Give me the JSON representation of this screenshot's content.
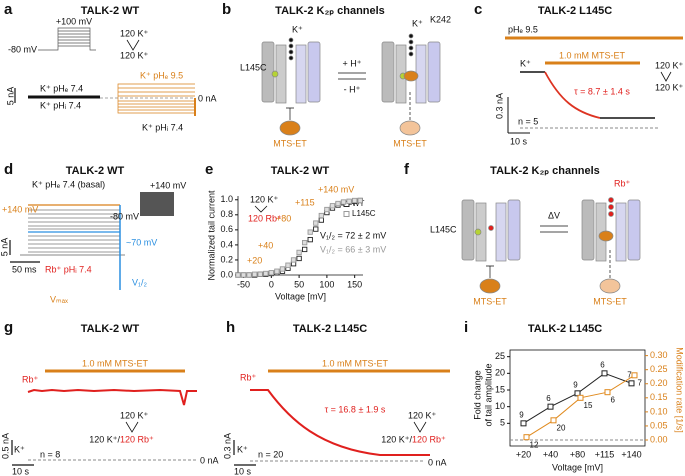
{
  "a": {
    "letter": "a",
    "title": "TALK-2 WT",
    "labels": [
      "+100 mV",
      "-80 mV",
      "120 K⁺",
      "120 K⁺",
      "K⁺ pHₑ 9.5",
      "K⁺ pHₑ 7.4",
      "5 nA",
      "K⁺ pHᵢ 7.4",
      "0 nA",
      "K⁺ pHᵢ 7.4"
    ]
  },
  "b": {
    "letter": "b",
    "title": "TALK-2 K₂ₚ channels",
    "labels": [
      "K⁺",
      "K⁺",
      "K242",
      "L145C",
      "+ H⁺",
      "- H⁺",
      "MTS-ET",
      "MTS-ET"
    ]
  },
  "c": {
    "letter": "c",
    "title": "TALK-2 L145C",
    "labels": [
      "pHₑ 9.5",
      "1.0 mM MTS-ET",
      "K⁺",
      "120 K⁺",
      "120 K⁺",
      "τ = 8.7 ± 1.4 s",
      "0.3 nA",
      "n = 5",
      "10 s"
    ]
  },
  "d": {
    "letter": "d",
    "title": "TALK-2 WT",
    "labels": [
      "K⁺ pHₑ 7.4 (basal)",
      "+140 mV",
      "+140 mV",
      "-80 mV",
      "5 nA",
      "~70 mV",
      "50 ms",
      "Rb⁺ pHᵢ 7.4",
      "V₁/₂",
      "Vₘₐₓ"
    ]
  },
  "e": {
    "letter": "e",
    "chart_data": {
      "type": "scatter",
      "title": "TALK-2 WT",
      "xlabel": "Voltage [mV]",
      "ylabel": "Normalized tail current",
      "x": [
        -60,
        -50,
        -40,
        -30,
        -20,
        -10,
        0,
        10,
        20,
        30,
        40,
        50,
        60,
        70,
        80,
        90,
        100,
        110,
        120,
        130,
        140,
        150,
        160
      ],
      "series": [
        {
          "name": "WT",
          "color": "#222222",
          "values": [
            0.0,
            0.0,
            0.0,
            0.0,
            0.01,
            0.01,
            0.02,
            0.03,
            0.05,
            0.09,
            0.15,
            0.22,
            0.34,
            0.47,
            0.61,
            0.73,
            0.83,
            0.89,
            0.93,
            0.96,
            0.97,
            0.98,
            0.99
          ]
        },
        {
          "name": "L145C",
          "color": "#999999",
          "values": [
            0.0,
            0.0,
            0.0,
            0.01,
            0.01,
            0.02,
            0.03,
            0.05,
            0.08,
            0.13,
            0.2,
            0.3,
            0.43,
            0.57,
            0.69,
            0.79,
            0.87,
            0.92,
            0.95,
            0.97,
            0.98,
            0.99,
            0.99
          ]
        }
      ],
      "xlim": [
        -60,
        165
      ],
      "xticks": [
        -50,
        0,
        50,
        100,
        150
      ],
      "ylim": [
        0,
        1.05
      ],
      "yticks": [
        {
          "value": 0,
          "label": "0.0"
        },
        {
          "value": 0.2,
          "label": "0.2"
        },
        {
          "value": 0.4,
          "label": "0.4"
        },
        {
          "value": 0.6,
          "label": "0.6"
        },
        {
          "value": 0.8,
          "label": "0.8"
        },
        {
          "value": 1,
          "label": "1.0"
        }
      ],
      "annotations": [
        "+140 mV",
        "+115",
        "+80",
        "+40",
        "+20",
        "120 K⁺",
        "120 Rb⁺",
        "V₁/₂ = 72 ± 2 mV",
        "V₁/₂ = 66 ± 3 mV"
      ]
    }
  },
  "f": {
    "letter": "f",
    "title": "TALK-2 K₂ₚ channels",
    "labels": [
      "Rb⁺",
      "L145C",
      "ΔV",
      "MTS-ET",
      "MTS-ET"
    ]
  },
  "g": {
    "letter": "g",
    "title": "TALK-2 WT",
    "labels": [
      "1.0 mM MTS-ET",
      "Rb⁺",
      "120 K⁺",
      "120 K⁺/",
      "120 Rb⁺",
      "0.5 nA",
      "K⁺",
      "n = 8",
      "0 nA",
      "10 s"
    ]
  },
  "h": {
    "letter": "h",
    "title": "TALK-2 L145C",
    "labels": [
      "1.0 mM MTS-ET",
      "Rb⁺",
      "τ = 16.8 ± 1.9 s",
      "120 K⁺",
      "120 K⁺/",
      "120 Rb⁺",
      "0.3 nA",
      "K⁺",
      "n = 20",
      "0 nA",
      "10 s"
    ]
  },
  "i": {
    "letter": "i",
    "chart_data": {
      "type": "line",
      "title": "TALK-2 L145C",
      "xlabel": "Voltage [mV]",
      "ylabel": [
        "Fold change",
        "of tail amplitude"
      ],
      "y2label": "Modification rate [1/s]",
      "categories": [
        "+20",
        "+40",
        "+80",
        "+115",
        "+140"
      ],
      "series": [
        {
          "name": "Fold change",
          "color": "#222222",
          "values": [
            5,
            10,
            14,
            20,
            17
          ],
          "n": [
            9,
            6,
            9,
            6,
            7
          ]
        },
        {
          "name": "Modification rate",
          "color": "#e08a1e",
          "axis": "y2",
          "values": [
            0.01,
            0.07,
            0.15,
            0.17,
            0.23
          ],
          "n": [
            12,
            20,
            15,
            6,
            7
          ]
        }
      ],
      "ylim": [
        0,
        27
      ],
      "yticks": [
        5,
        10,
        15,
        20,
        25
      ],
      "y2lim": [
        0,
        0.32
      ],
      "y2ticks": [
        {
          "value": 0,
          "label": "0.00"
        },
        {
          "value": 0.05,
          "label": "0.05"
        },
        {
          "value": 0.1,
          "label": "0.10"
        },
        {
          "value": 0.15,
          "label": "0.15"
        },
        {
          "value": 0.2,
          "label": "0.20"
        },
        {
          "value": 0.25,
          "label": "0.25"
        },
        {
          "value": 0.3,
          "label": "0.30"
        }
      ]
    }
  }
}
